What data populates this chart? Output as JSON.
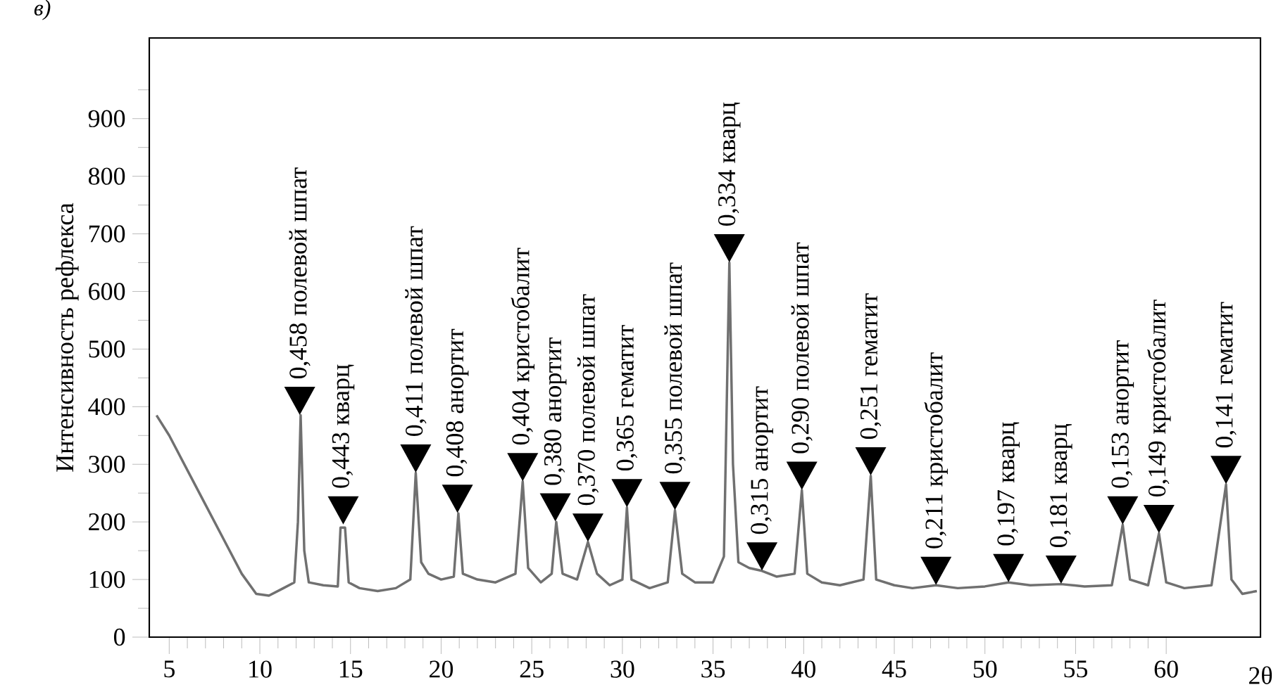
{
  "chart_data": {
    "type": "line",
    "title": "в)",
    "xlabel": "2θ",
    "ylabel": "Интенсивность рефлекса",
    "xlim": [
      3.9,
      65.2
    ],
    "ylim": [
      0,
      1040
    ],
    "xticks": [
      5,
      10,
      15,
      20,
      25,
      30,
      35,
      40,
      45,
      50,
      55,
      60
    ],
    "yticks": [
      0,
      100,
      200,
      300,
      400,
      500,
      600,
      700,
      800,
      900
    ],
    "grid": false,
    "marker": "none",
    "line_style": "solid",
    "series": [
      {
        "color": "#707070",
        "x": [
          4.3,
          5,
          6,
          7,
          8,
          9,
          9.8,
          10.5,
          11.3,
          11.9,
          12.1,
          12.25,
          12.45,
          12.7,
          13.5,
          14.3,
          14.45,
          14.7,
          14.9,
          15.5,
          16.5,
          17.5,
          18.3,
          18.6,
          18.9,
          19.3,
          20,
          20.7,
          20.95,
          21.2,
          22,
          23,
          24.1,
          24.5,
          24.8,
          25.5,
          26.1,
          26.35,
          26.7,
          27.5,
          28.1,
          28.6,
          29.3,
          30,
          30.25,
          30.5,
          31.5,
          32.5,
          32.9,
          33.3,
          34,
          35,
          35.6,
          35.9,
          36.1,
          36.4,
          37,
          37.7,
          38.5,
          39.5,
          39.9,
          40.2,
          41,
          42,
          43.3,
          43.7,
          44,
          45,
          46,
          47.3,
          48.5,
          50,
          51.3,
          52.5,
          54.2,
          55.5,
          57,
          57.6,
          58,
          59,
          59.6,
          60,
          61,
          62.5,
          63.3,
          63.6,
          64.2,
          65
        ],
        "values": [
          385,
          350,
          290,
          230,
          170,
          110,
          75,
          72,
          85,
          95,
          200,
          385,
          150,
          95,
          90,
          88,
          190,
          190,
          95,
          85,
          80,
          85,
          100,
          285,
          130,
          110,
          100,
          105,
          215,
          110,
          100,
          95,
          110,
          270,
          120,
          95,
          110,
          200,
          110,
          100,
          165,
          110,
          90,
          100,
          225,
          100,
          85,
          95,
          220,
          110,
          95,
          95,
          140,
          650,
          300,
          130,
          120,
          115,
          105,
          110,
          255,
          110,
          95,
          90,
          100,
          280,
          100,
          90,
          85,
          90,
          85,
          88,
          95,
          90,
          92,
          88,
          90,
          195,
          100,
          90,
          180,
          95,
          85,
          90,
          265,
          100,
          75,
          80
        ]
      }
    ],
    "annotations": [
      {
        "text": "0,458 полевой шпат",
        "x": 12.2,
        "y": 385
      },
      {
        "text": "0,443 кварц",
        "x": 14.6,
        "y": 195
      },
      {
        "text": "0,411 полевой шпат",
        "x": 18.6,
        "y": 285
      },
      {
        "text": "0,408 анортит",
        "x": 20.9,
        "y": 215
      },
      {
        "text": "0,404 кристобалит",
        "x": 24.5,
        "y": 270
      },
      {
        "text": "0,380 анортит",
        "x": 26.3,
        "y": 200
      },
      {
        "text": "0,370 полевой шпат",
        "x": 28.1,
        "y": 165
      },
      {
        "text": "0,365 гематит",
        "x": 30.25,
        "y": 225
      },
      {
        "text": "0,355 полевой шпат",
        "x": 32.9,
        "y": 220
      },
      {
        "text": "0,334 кварц",
        "x": 35.9,
        "y": 650
      },
      {
        "text": "0,315 анортит",
        "x": 37.7,
        "y": 115
      },
      {
        "text": "0,290 полевой шпат",
        "x": 39.9,
        "y": 255
      },
      {
        "text": "0,251 гематит",
        "x": 43.7,
        "y": 280
      },
      {
        "text": "0,211 кристобалит",
        "x": 47.3,
        "y": 90
      },
      {
        "text": "0,197 кварц",
        "x": 51.3,
        "y": 95
      },
      {
        "text": "0,181 кварц",
        "x": 54.2,
        "y": 92
      },
      {
        "text": "0,153 анортит",
        "x": 57.6,
        "y": 195
      },
      {
        "text": "0,149 кристобалит",
        "x": 59.6,
        "y": 180
      },
      {
        "text": "0,141 гематит",
        "x": 63.3,
        "y": 265
      }
    ]
  }
}
